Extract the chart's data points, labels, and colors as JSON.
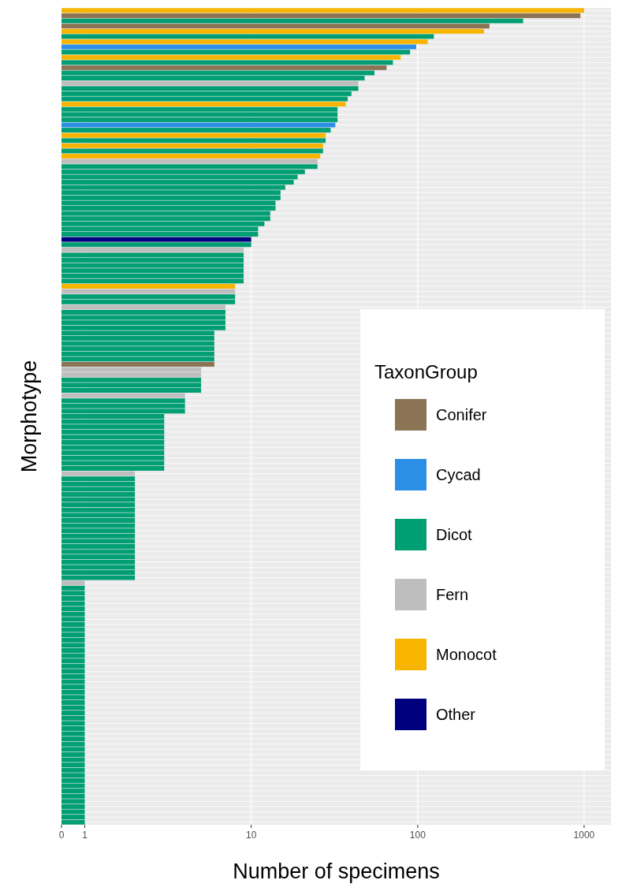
{
  "chart_data": {
    "type": "bar",
    "orientation": "horizontal",
    "xlabel": "Number of specimens",
    "ylabel": "Morphotype",
    "legend_title": "TaxonGroup",
    "legend": "right",
    "grid": true,
    "log": "x",
    "xlim": [
      0,
      1450
    ],
    "xticks": [
      0,
      1,
      10,
      100,
      1000
    ],
    "categories": [
      null,
      null,
      null,
      null,
      null,
      null,
      null,
      null,
      null,
      null,
      null,
      null,
      null,
      null,
      null,
      null,
      null,
      null,
      null,
      null,
      null,
      null,
      null,
      null,
      null,
      null,
      null,
      null,
      null,
      null,
      null,
      null,
      null,
      null,
      null,
      null,
      null,
      null,
      null,
      null,
      null,
      null,
      null,
      null,
      null,
      null,
      null,
      null,
      null,
      null,
      null,
      null,
      null,
      null,
      null,
      null,
      null,
      null,
      null,
      null,
      null,
      null,
      null,
      null,
      null,
      null,
      null,
      null,
      null,
      null,
      null,
      null,
      null,
      null,
      null,
      null,
      null,
      null,
      null,
      null,
      null,
      null,
      null,
      null,
      null,
      null,
      null,
      null,
      null,
      null,
      null,
      null,
      null,
      null,
      null,
      null,
      null,
      null,
      null,
      null,
      null,
      null,
      null,
      null,
      null,
      null,
      null,
      null,
      null,
      null,
      null,
      null,
      null,
      null,
      null,
      null,
      null,
      null,
      null,
      null,
      null,
      null,
      null,
      null,
      null,
      null,
      null,
      null,
      null,
      null,
      null,
      null,
      null,
      null,
      null,
      null,
      null,
      null,
      null,
      null,
      null,
      null,
      null,
      null,
      null,
      null,
      null,
      null,
      null,
      null,
      null,
      null,
      null,
      null,
      null,
      null,
      null
    ],
    "series": [
      {
        "name": "Conifer",
        "color": "#8b7355",
        "values": [
          null,
          950,
          null,
          270,
          null,
          null,
          null,
          null,
          null,
          null,
          null,
          65,
          null,
          null,
          null,
          null,
          null,
          null,
          null,
          null,
          null,
          null,
          null,
          null,
          null,
          null,
          null,
          null,
          null,
          null,
          null,
          null,
          null,
          null,
          null,
          null,
          null,
          null,
          null,
          null,
          null,
          null,
          null,
          null,
          null,
          null,
          null,
          null,
          null,
          null,
          null,
          null,
          null,
          null,
          null,
          null,
          null,
          null,
          null,
          null,
          null,
          null,
          null,
          null,
          null,
          null,
          null,
          null,
          6,
          null,
          null,
          null,
          null,
          null,
          null,
          null,
          null,
          null,
          null,
          null,
          null,
          null,
          null,
          null,
          null,
          null,
          null,
          null,
          null,
          null,
          null,
          null,
          null,
          null,
          null,
          null,
          null,
          null,
          null,
          null,
          null,
          null,
          null,
          null,
          null,
          null,
          null,
          null,
          null,
          null,
          null,
          null,
          null,
          null,
          null,
          null,
          null,
          null,
          null,
          null,
          null,
          null,
          null,
          null,
          null,
          null,
          null,
          null,
          null,
          null,
          null,
          null,
          null,
          null,
          null,
          null,
          null,
          null,
          null,
          null,
          null,
          null,
          null,
          null,
          null,
          null,
          null,
          null,
          null,
          null,
          null,
          null,
          null,
          null,
          null,
          null,
          null
        ]
      },
      {
        "name": "Cycad",
        "color": "#2b8fe6",
        "values": [
          null,
          null,
          null,
          null,
          null,
          null,
          null,
          98,
          null,
          null,
          null,
          null,
          null,
          null,
          null,
          null,
          null,
          null,
          null,
          null,
          null,
          null,
          32,
          null,
          null,
          null,
          null,
          null,
          null,
          null,
          null,
          null,
          null,
          null,
          null,
          null,
          null,
          null,
          null,
          null,
          null,
          null,
          null,
          null,
          null,
          null,
          null,
          null,
          null,
          null,
          null,
          null,
          null,
          null,
          null,
          null,
          null,
          null,
          null,
          null,
          null,
          null,
          null,
          null,
          null,
          null,
          null,
          null,
          null,
          null,
          null,
          null,
          null,
          null,
          null,
          null,
          null,
          null,
          null,
          null,
          null,
          null,
          null,
          null,
          null,
          null,
          null,
          null,
          null,
          null,
          null,
          null,
          null,
          null,
          null,
          null,
          null,
          null,
          null,
          null,
          null,
          null,
          null,
          null,
          null,
          null,
          null,
          null,
          null,
          null,
          null,
          null,
          null,
          null,
          null,
          null,
          null,
          null,
          null,
          null,
          null,
          null,
          null,
          null,
          null,
          null,
          null,
          null,
          null,
          null,
          null,
          null,
          null,
          null,
          null,
          null,
          null,
          null,
          null,
          null,
          null,
          null,
          null,
          null,
          null,
          null,
          null,
          null,
          null,
          null,
          null,
          null,
          null,
          null,
          null,
          null,
          null
        ]
      },
      {
        "name": "Dicot",
        "color": "#009e73",
        "values": [
          null,
          null,
          430,
          null,
          null,
          125,
          null,
          null,
          90,
          null,
          71,
          null,
          55,
          48,
          null,
          44,
          40,
          38,
          null,
          33,
          33,
          33,
          null,
          30,
          null,
          28,
          null,
          27,
          null,
          null,
          25,
          21,
          19,
          18,
          16,
          15,
          15,
          14,
          14,
          13,
          13,
          12,
          11,
          11,
          null,
          10,
          null,
          9,
          9,
          9,
          9,
          9,
          9,
          null,
          null,
          8,
          8,
          null,
          7,
          7,
          7,
          7,
          6,
          6,
          6,
          6,
          6,
          6,
          null,
          null,
          null,
          5,
          5,
          5,
          null,
          4,
          4,
          4,
          3,
          3,
          3,
          3,
          3,
          3,
          3,
          3,
          3,
          3,
          3,
          null,
          2,
          2,
          2,
          2,
          2,
          2,
          2,
          2,
          2,
          2,
          2,
          2,
          2,
          2,
          2,
          2,
          2,
          2,
          2,
          2,
          null,
          1,
          1,
          1,
          1,
          1,
          1,
          1,
          1,
          1,
          1,
          1,
          1,
          1,
          1,
          1,
          1,
          1,
          1,
          1,
          1,
          1,
          1,
          1,
          1,
          1,
          1,
          1,
          1,
          1,
          1,
          1,
          1,
          1,
          1,
          1,
          1,
          1,
          1,
          1,
          1,
          1,
          1,
          1,
          1,
          1,
          1
        ]
      },
      {
        "name": "Fern",
        "color": "#bebebe",
        "values": [
          null,
          null,
          null,
          null,
          null,
          null,
          null,
          null,
          null,
          null,
          null,
          null,
          null,
          null,
          44,
          null,
          null,
          null,
          null,
          null,
          null,
          null,
          null,
          null,
          null,
          null,
          null,
          null,
          null,
          25,
          null,
          null,
          null,
          null,
          null,
          null,
          null,
          null,
          null,
          null,
          null,
          null,
          null,
          null,
          null,
          null,
          9,
          null,
          null,
          null,
          null,
          null,
          null,
          null,
          8,
          null,
          null,
          7,
          null,
          null,
          null,
          null,
          null,
          null,
          null,
          null,
          null,
          null,
          null,
          5,
          5,
          null,
          null,
          null,
          4,
          null,
          null,
          null,
          null,
          null,
          null,
          null,
          null,
          null,
          null,
          null,
          null,
          null,
          null,
          2,
          null,
          null,
          null,
          null,
          null,
          null,
          null,
          null,
          null,
          null,
          null,
          null,
          null,
          null,
          null,
          null,
          null,
          null,
          null,
          null,
          1,
          null,
          null,
          null,
          null,
          null,
          null,
          null,
          null,
          null,
          null,
          null,
          null,
          null,
          null,
          null,
          null,
          null,
          null,
          null,
          null,
          null,
          null,
          null,
          null,
          null,
          null,
          null,
          null,
          null,
          null,
          null,
          null,
          null,
          null,
          null,
          null,
          null,
          null,
          null,
          null,
          null,
          null,
          null,
          null,
          null,
          null
        ]
      },
      {
        "name": "Monocot",
        "color": "#f7b500",
        "values": [
          1000,
          null,
          null,
          null,
          250,
          null,
          115,
          null,
          null,
          79,
          null,
          null,
          null,
          null,
          null,
          null,
          null,
          null,
          37,
          null,
          null,
          null,
          null,
          null,
          28,
          null,
          27,
          null,
          26,
          null,
          null,
          null,
          null,
          null,
          null,
          null,
          null,
          null,
          null,
          null,
          null,
          null,
          null,
          null,
          null,
          null,
          null,
          null,
          null,
          null,
          null,
          null,
          null,
          8,
          null,
          null,
          null,
          null,
          null,
          null,
          null,
          null,
          null,
          null,
          null,
          null,
          null,
          null,
          null,
          null,
          null,
          null,
          null,
          null,
          null,
          null,
          null,
          null,
          null,
          null,
          null,
          null,
          null,
          null,
          null,
          null,
          null,
          null,
          null,
          null,
          null,
          null,
          null,
          null,
          null,
          null,
          null,
          null,
          null,
          null,
          null,
          null,
          null,
          null,
          null,
          null,
          null,
          null,
          null,
          null,
          null,
          null,
          null,
          null,
          null,
          null,
          null,
          null,
          null,
          null,
          null,
          null,
          null,
          null,
          null,
          null,
          null,
          null,
          null,
          null,
          null,
          null,
          null,
          null,
          null,
          null,
          null,
          null,
          null,
          null,
          null,
          null,
          null,
          null,
          null,
          null,
          null,
          null,
          null,
          null,
          null,
          null,
          null,
          null,
          null,
          null,
          null
        ]
      },
      {
        "name": "Other",
        "color": "#00007f",
        "values": [
          null,
          null,
          null,
          null,
          null,
          null,
          null,
          null,
          null,
          null,
          null,
          null,
          null,
          null,
          null,
          null,
          null,
          null,
          null,
          null,
          null,
          null,
          null,
          null,
          null,
          null,
          null,
          null,
          null,
          null,
          null,
          null,
          null,
          null,
          null,
          null,
          null,
          null,
          null,
          null,
          null,
          null,
          null,
          null,
          10,
          null,
          null,
          null,
          null,
          null,
          null,
          null,
          null,
          null,
          null,
          null,
          null,
          null,
          null,
          null,
          null,
          null,
          null,
          null,
          null,
          null,
          null,
          null,
          null,
          null,
          null,
          null,
          null,
          null,
          null,
          null,
          null,
          null,
          null,
          null,
          null,
          null,
          null,
          null,
          null,
          null,
          null,
          null,
          null,
          null,
          null,
          null,
          null,
          null,
          null,
          null,
          null,
          null,
          null,
          null,
          null,
          null,
          null,
          null,
          null,
          null,
          null,
          null,
          null,
          null,
          null,
          null,
          null,
          null,
          null,
          null,
          null,
          null,
          null,
          null,
          null,
          null,
          null,
          null,
          null,
          null,
          null,
          null,
          null,
          null,
          null,
          null,
          null,
          null,
          null,
          null,
          null,
          null,
          null,
          null,
          null,
          null,
          null,
          null,
          null,
          null,
          null,
          null,
          null,
          null,
          null,
          null,
          null,
          null,
          null,
          null,
          null
        ]
      }
    ]
  }
}
